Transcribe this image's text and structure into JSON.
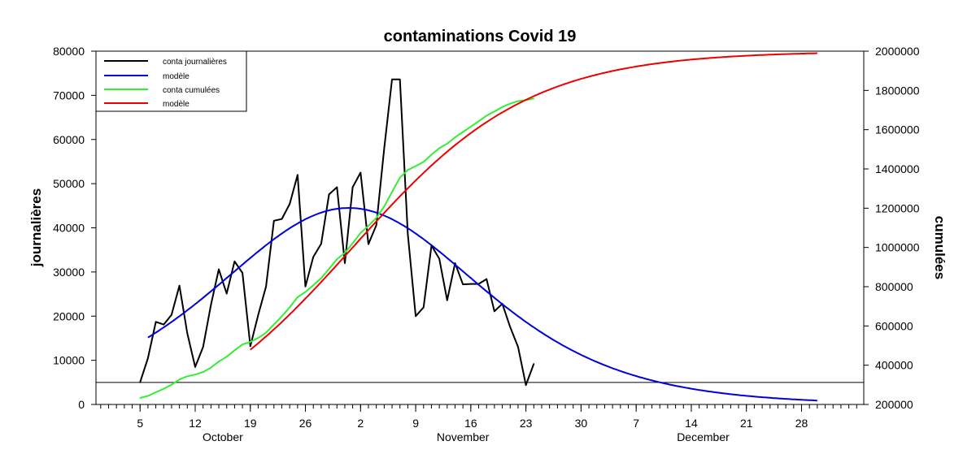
{
  "chart_data": {
    "type": "line",
    "title": "contaminations Covid 19",
    "ylabel_left": "journalières",
    "ylabel_right": "cumulées",
    "ylim_left": [
      0,
      80000
    ],
    "ylim_right": [
      200000,
      2000000
    ],
    "yticks_left": [
      "0",
      "10000",
      "20000",
      "30000",
      "40000",
      "50000",
      "60000",
      "70000",
      "80000"
    ],
    "yticks_right": [
      "200000",
      "400000",
      "600000",
      "800000",
      "1000000",
      "1200000",
      "1400000",
      "1600000",
      "1800000",
      "2000000"
    ],
    "x_unit": "days since Oct 5",
    "xlim": [
      -5.6,
      91.9
    ],
    "xticks": [
      {
        "day": 0,
        "label": "5"
      },
      {
        "day": 7,
        "label": "12"
      },
      {
        "day": 14,
        "label": "19"
      },
      {
        "day": 21,
        "label": "26"
      },
      {
        "day": 28,
        "label": "2"
      },
      {
        "day": 35,
        "label": "9"
      },
      {
        "day": 42,
        "label": "16"
      },
      {
        "day": 49,
        "label": "23"
      },
      {
        "day": 56,
        "label": "30"
      },
      {
        "day": 63,
        "label": "7"
      },
      {
        "day": 70,
        "label": "14"
      },
      {
        "day": 77,
        "label": "21"
      },
      {
        "day": 84,
        "label": "28"
      }
    ],
    "months": [
      {
        "day": 10.5,
        "label": "October"
      },
      {
        "day": 41,
        "label": "November"
      },
      {
        "day": 71.5,
        "label": "December"
      }
    ],
    "reference_line_left": 5000,
    "legend": [
      "conta journalières",
      "modèle",
      "conta cumulées",
      "modèle"
    ],
    "legend_position": "top-left",
    "series": [
      {
        "name": "conta journalières",
        "axis": "left",
        "color": "#000000",
        "start_day": 0,
        "values": [
          5000,
          10500,
          18700,
          18100,
          20300,
          26900,
          16100,
          8500,
          13000,
          22600,
          30600,
          25100,
          32400,
          29800,
          13200,
          20300,
          26700,
          41600,
          42000,
          45400,
          52000,
          26700,
          33400,
          36400,
          47600,
          49200,
          32000,
          49200,
          52500,
          36300,
          40600,
          58000,
          73600,
          73600,
          38600,
          20000,
          22000,
          36000,
          33000,
          23600,
          32000,
          27200,
          27300,
          27300,
          28400,
          21100,
          22800,
          17500,
          13000,
          4400,
          9200
        ]
      },
      {
        "name": "modèle",
        "axis": "left",
        "color": "#0000dd",
        "model": "logistic-derivative",
        "peak": 44500,
        "t0": 26.5,
        "w": 11.25,
        "day_range": [
          1,
          86
        ]
      },
      {
        "name": "conta cumulées",
        "axis": "right",
        "color": "#33ee33",
        "start_day": 0,
        "values": [
          233000,
          243500,
          262200,
          280300,
          300600,
          327500,
          343600,
          352100,
          365100,
          387700,
          418300,
          443400,
          475800,
          505600,
          518800,
          539100,
          565800,
          607400,
          649400,
          694800,
          746800,
          773500,
          806900,
          843300,
          890900,
          940100,
          972100,
          1021300,
          1073800,
          1110100,
          1150700,
          1208700,
          1282300,
          1355900,
          1394500,
          1414500,
          1436500,
          1472500,
          1505500,
          1529100,
          1561100,
          1588300,
          1615600,
          1642900,
          1671300,
          1692400,
          1715200,
          1732700,
          1745700,
          1750100,
          1759300
        ]
      },
      {
        "name": "modèle",
        "axis": "right",
        "color": "#ee0000",
        "model": "logistic",
        "K": 2000000,
        "t0": 27,
        "w": 11.25,
        "day_range": [
          14,
          86
        ]
      }
    ]
  }
}
